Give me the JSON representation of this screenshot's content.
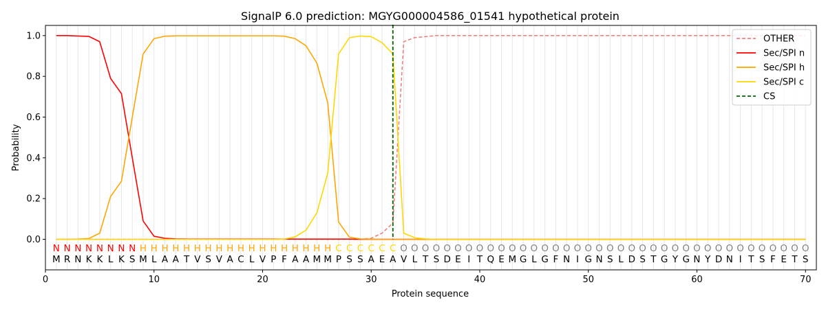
{
  "chart_data": {
    "type": "line",
    "title": "SignalP 6.0 prediction: MGYG000004586_01541 hypothetical protein",
    "xlabel": "Protein sequence",
    "ylabel": "Probability",
    "xlim": [
      0,
      71
    ],
    "ylim": [
      -0.15,
      1.05
    ],
    "x_ticks": [
      0,
      10,
      20,
      30,
      40,
      50,
      60,
      70
    ],
    "y_ticks": [
      0.0,
      0.2,
      0.4,
      0.6,
      0.8,
      1.0
    ],
    "x_tick_labels": [
      "0",
      "10",
      "20",
      "30",
      "40",
      "50",
      "60",
      "70"
    ],
    "y_tick_labels": [
      "0.0",
      "0.2",
      "0.4",
      "0.6",
      "0.8",
      "1.0"
    ],
    "grid": "vertical lines at each residue",
    "legend_position": "top-right",
    "sequence": [
      "M",
      "R",
      "N",
      "K",
      "K",
      "L",
      "K",
      "S",
      "M",
      "L",
      "A",
      "A",
      "T",
      "V",
      "S",
      "V",
      "A",
      "C",
      "L",
      "V",
      "P",
      "F",
      "A",
      "A",
      "M",
      "M",
      "P",
      "S",
      "S",
      "A",
      "E",
      "A",
      "V",
      "L",
      "T",
      "S",
      "D",
      "E",
      "I",
      "T",
      "Q",
      "E",
      "M",
      "G",
      "L",
      "G",
      "F",
      "N",
      "I",
      "G",
      "N",
      "S",
      "L",
      "D",
      "S",
      "T",
      "G",
      "Y",
      "G",
      "N",
      "Y",
      "D",
      "N",
      "I",
      "T",
      "S",
      "F",
      "E",
      "T",
      "S"
    ],
    "regions": [
      "N",
      "N",
      "N",
      "N",
      "N",
      "N",
      "N",
      "N",
      "H",
      "H",
      "H",
      "H",
      "H",
      "H",
      "H",
      "H",
      "H",
      "H",
      "H",
      "H",
      "H",
      "H",
      "H",
      "H",
      "H",
      "H",
      "C",
      "C",
      "C",
      "C",
      "C",
      "C",
      "O",
      "O",
      "O",
      "O",
      "O",
      "O",
      "O",
      "O",
      "O",
      "O",
      "O",
      "O",
      "O",
      "O",
      "O",
      "O",
      "O",
      "O",
      "O",
      "O",
      "O",
      "O",
      "O",
      "O",
      "O",
      "O",
      "O",
      "O",
      "O",
      "O",
      "O",
      "O",
      "O",
      "O",
      "O",
      "O",
      "O",
      "O"
    ],
    "region_colors": {
      "N": "#ff0000",
      "H": "#ffa500",
      "C": "#ffd700",
      "O": "#808080"
    },
    "cleavage_site": 32,
    "series": [
      {
        "name": "OTHER",
        "color": "#f08080",
        "dash": "dashed",
        "values": [
          0.0,
          0.0,
          0.0,
          0.0,
          0.0,
          0.0,
          0.0,
          0.0,
          0.0,
          0.0,
          0.0,
          0.0,
          0.0,
          0.0,
          0.0,
          0.0,
          0.0,
          0.0,
          0.0,
          0.0,
          0.0,
          0.0,
          0.0,
          0.0,
          0.0,
          0.0,
          0.0,
          0.0,
          0.0,
          0.005,
          0.03,
          0.08,
          0.97,
          0.99,
          0.995,
          1.0,
          1.0,
          1.0,
          1.0,
          1.0,
          1.0,
          1.0,
          1.0,
          1.0,
          1.0,
          1.0,
          1.0,
          1.0,
          1.0,
          1.0,
          1.0,
          1.0,
          1.0,
          1.0,
          1.0,
          1.0,
          1.0,
          1.0,
          1.0,
          1.0,
          1.0,
          1.0,
          1.0,
          1.0,
          1.0,
          1.0,
          1.0,
          1.0,
          1.0,
          1.0
        ]
      },
      {
        "name": "Sec/SPI n",
        "color": "#ff0000",
        "dash": "solid",
        "values": [
          1.0,
          1.0,
          0.998,
          0.996,
          0.97,
          0.79,
          0.715,
          0.4,
          0.09,
          0.015,
          0.005,
          0.002,
          0.001,
          0.001,
          0.001,
          0.001,
          0.001,
          0.001,
          0.001,
          0.001,
          0.001,
          0.001,
          0.001,
          0.001,
          0.001,
          0.001,
          0.001,
          0.001,
          0.0,
          0.0,
          0.0,
          0.0,
          0.0,
          0.0,
          0.0,
          0.0,
          0.0,
          0.0,
          0.0,
          0.0,
          0.0,
          0.0,
          0.0,
          0.0,
          0.0,
          0.0,
          0.0,
          0.0,
          0.0,
          0.0,
          0.0,
          0.0,
          0.0,
          0.0,
          0.0,
          0.0,
          0.0,
          0.0,
          0.0,
          0.0,
          0.0,
          0.0,
          0.0,
          0.0,
          0.0,
          0.0,
          0.0,
          0.0,
          0.0,
          0.0
        ]
      },
      {
        "name": "Sec/SPI h",
        "color": "#ffa500",
        "dash": "solid",
        "values": [
          0.0,
          0.0,
          0.001,
          0.004,
          0.03,
          0.21,
          0.285,
          0.6,
          0.91,
          0.985,
          0.997,
          0.999,
          0.999,
          0.999,
          0.999,
          0.999,
          0.999,
          0.999,
          0.999,
          0.999,
          0.999,
          0.997,
          0.985,
          0.95,
          0.865,
          0.67,
          0.085,
          0.01,
          0.002,
          0.001,
          0.0,
          0.0,
          0.0,
          0.0,
          0.0,
          0.0,
          0.0,
          0.0,
          0.0,
          0.0,
          0.0,
          0.0,
          0.0,
          0.0,
          0.0,
          0.0,
          0.0,
          0.0,
          0.0,
          0.0,
          0.0,
          0.0,
          0.0,
          0.0,
          0.0,
          0.0,
          0.0,
          0.0,
          0.0,
          0.0,
          0.0,
          0.0,
          0.0,
          0.0,
          0.0,
          0.0,
          0.0,
          0.0,
          0.0,
          0.0
        ]
      },
      {
        "name": "Sec/SPI c",
        "color": "#ffd700",
        "dash": "solid",
        "values": [
          0.0,
          0.0,
          0.0,
          0.0,
          0.0,
          0.0,
          0.0,
          0.0,
          0.0,
          0.0,
          0.0,
          0.0,
          0.0,
          0.0,
          0.0,
          0.0,
          0.0,
          0.0,
          0.0,
          0.0,
          0.0,
          0.001,
          0.012,
          0.045,
          0.13,
          0.325,
          0.91,
          0.99,
          0.998,
          0.995,
          0.965,
          0.91,
          0.03,
          0.008,
          0.002,
          0.0,
          0.0,
          0.0,
          0.0,
          0.0,
          0.0,
          0.0,
          0.0,
          0.0,
          0.0,
          0.0,
          0.0,
          0.0,
          0.0,
          0.0,
          0.0,
          0.0,
          0.0,
          0.0,
          0.0,
          0.0,
          0.0,
          0.0,
          0.0,
          0.0,
          0.0,
          0.0,
          0.0,
          0.0,
          0.0,
          0.0,
          0.0,
          0.0,
          0.0,
          0.0
        ]
      },
      {
        "name": "CS",
        "color": "#006400",
        "dash": "dashed",
        "values": []
      }
    ]
  }
}
